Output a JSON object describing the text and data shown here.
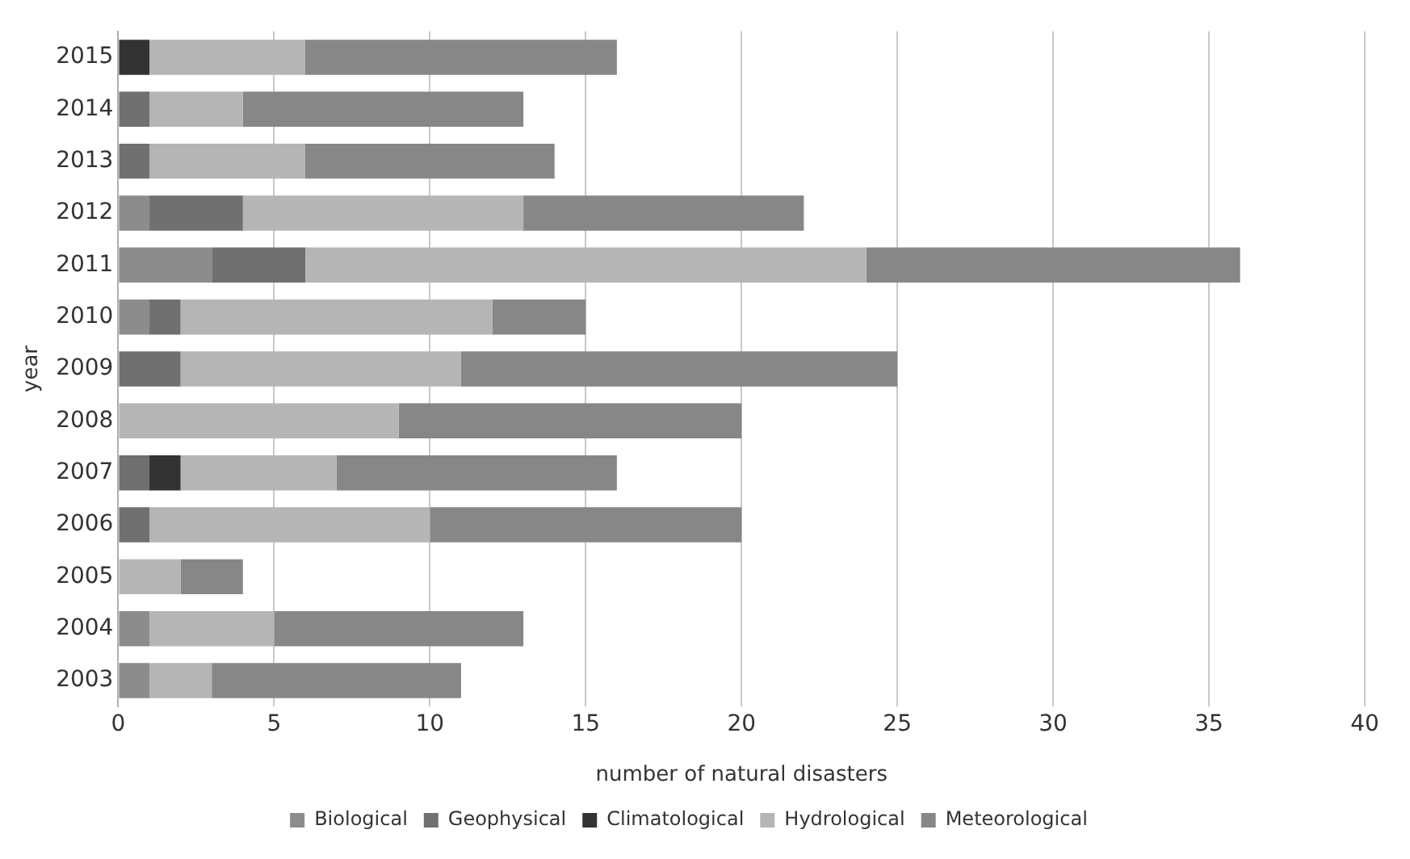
{
  "chart_data": {
    "type": "bar",
    "orientation": "horizontal",
    "stacked": true,
    "xlabel": "number of natural disasters",
    "ylabel": "year",
    "categories": [
      "2015",
      "2014",
      "2013",
      "2012",
      "2011",
      "2010",
      "2009",
      "2008",
      "2007",
      "2006",
      "2005",
      "2004",
      "2003"
    ],
    "series": [
      {
        "name": "Biological",
        "color": "#8c8c8c",
        "values": [
          0,
          0,
          0,
          1,
          3,
          1,
          0,
          0,
          0,
          0,
          0,
          1,
          1
        ]
      },
      {
        "name": "Geophysical",
        "color": "#707070",
        "values": [
          0,
          1,
          1,
          3,
          3,
          1,
          2,
          0,
          1,
          1,
          0,
          0,
          0
        ]
      },
      {
        "name": "Climatological",
        "color": "#333333",
        "values": [
          1,
          0,
          0,
          0,
          0,
          0,
          0,
          0,
          1,
          0,
          0,
          0,
          0
        ]
      },
      {
        "name": "Hydrological",
        "color": "#b5b5b5",
        "values": [
          5,
          3,
          5,
          9,
          18,
          10,
          9,
          9,
          5,
          9,
          2,
          4,
          2
        ]
      },
      {
        "name": "Meteorological",
        "color": "#878787",
        "values": [
          10,
          9,
          8,
          9,
          12,
          3,
          14,
          11,
          9,
          10,
          2,
          8,
          8
        ]
      }
    ],
    "xlim": [
      0,
      40
    ],
    "xticks": [
      0,
      5,
      10,
      15,
      20,
      25,
      30,
      35,
      40
    ],
    "grid": "x",
    "legend": "bottom"
  }
}
